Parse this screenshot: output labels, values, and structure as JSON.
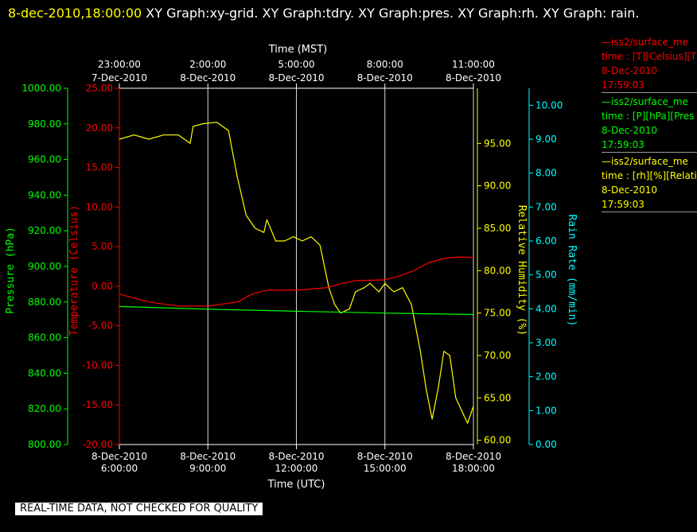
{
  "header": {
    "timestamp": "8-dec-2010,18:00:00",
    "title": "XY Graph:xy-grid.  XY Graph:tdry.  XY Graph:pres.  XY Graph:rh.  XY Graph: rain."
  },
  "legend": [
    {
      "line1": "—iss2/surface_me",
      "line2": "time : [T][Celsius][T",
      "line3": "8-Dec-2010",
      "line4": "17:59:03",
      "color": "#ff0000"
    },
    {
      "line1": "—iss2/surface_me",
      "line2": "time : [P][hPa][Pres",
      "line3": "8-Dec-2010",
      "line4": "17:59:03",
      "color": "#00ff00"
    },
    {
      "line1": "—iss2/surface_me",
      "line2": "time : [rh][%][Relati",
      "line3": "8-Dec-2010",
      "line4": "17:59:03",
      "color": "#ffff00"
    }
  ],
  "notice": "REAL-TIME DATA, NOT CHECKED FOR QUALITY",
  "chart_data": {
    "type": "line",
    "top_axis": {
      "title": "Time (MST)",
      "ticks": [
        {
          "time": "23:00:00",
          "date": "7-Dec-2010"
        },
        {
          "time": "2:00:00",
          "date": "8-Dec-2010"
        },
        {
          "time": "5:00:00",
          "date": "8-Dec-2010"
        },
        {
          "time": "8:00:00",
          "date": "8-Dec-2010"
        },
        {
          "time": "11:00:00",
          "date": "8-Dec-2010"
        }
      ]
    },
    "bottom_axis": {
      "title": "Time (UTC)",
      "range": [
        "2010-12-08 06:00:00",
        "2010-12-08 18:00:00"
      ],
      "ticks": [
        {
          "date": "8-Dec-2010",
          "time": "6:00:00"
        },
        {
          "date": "8-Dec-2010",
          "time": "9:00:00"
        },
        {
          "date": "8-Dec-2010",
          "time": "12:00:00"
        },
        {
          "date": "8-Dec-2010",
          "time": "15:00:00"
        },
        {
          "date": "8-Dec-2010",
          "time": "18:00:00"
        }
      ]
    },
    "grid": "vertical",
    "y_axes": [
      {
        "id": "pres",
        "label": "Pressure (hPa)",
        "color": "#00ff00",
        "range": [
          800,
          1000
        ],
        "ticks": [
          "800.00",
          "820.00",
          "840.00",
          "860.00",
          "880.00",
          "900.00",
          "920.00",
          "940.00",
          "960.00",
          "980.00",
          "1000.00"
        ]
      },
      {
        "id": "tdry",
        "label": "Temperature (Celsius)",
        "color": "#ff0000",
        "range": [
          -20,
          25
        ],
        "ticks": [
          "-20.00",
          "-15.00",
          "-10.00",
          "-5.00",
          "0.00",
          "5.00",
          "10.00",
          "15.00",
          "20.00",
          "25.00"
        ]
      },
      {
        "id": "rh",
        "label": "Relative Humidity (%)",
        "color": "#ffff00",
        "range": [
          59.5,
          101.5
        ],
        "ticks": [
          "60.00",
          "65.00",
          "70.00",
          "75.00",
          "80.00",
          "85.00",
          "90.00",
          "95.00"
        ]
      },
      {
        "id": "rain",
        "label": "Rain Rate (mm/min)",
        "color": "#00ffff",
        "range": [
          0,
          10.5
        ],
        "ticks": [
          "0.00",
          "1.00",
          "2.00",
          "3.00",
          "4.00",
          "5.00",
          "6.00",
          "7.00",
          "8.00",
          "9.00",
          "10.00"
        ]
      }
    ],
    "series": [
      {
        "axis": "rh",
        "color": "#ffff00",
        "x": [
          6.0,
          6.5,
          7.0,
          7.5,
          8.0,
          8.4,
          8.5,
          8.8,
          9.3,
          9.7,
          10.0,
          10.3,
          10.6,
          10.9,
          11.0,
          11.3,
          11.6,
          11.9,
          12.2,
          12.5,
          12.8,
          13.1,
          13.3,
          13.5,
          13.8,
          14.0,
          14.3,
          14.5,
          14.8,
          15.0,
          15.3,
          15.6,
          15.9,
          16.2,
          16.4,
          16.6,
          16.8,
          17.0,
          17.2,
          17.4,
          17.6,
          17.8,
          18.0
        ],
        "y": [
          95.5,
          96.0,
          95.5,
          96.0,
          96.0,
          95.0,
          97.0,
          97.3,
          97.5,
          96.5,
          91.0,
          86.5,
          85.0,
          84.5,
          86.0,
          83.5,
          83.5,
          84.0,
          83.5,
          84.0,
          83.0,
          78.0,
          76.0,
          75.0,
          75.5,
          77.5,
          78.0,
          78.5,
          77.5,
          78.5,
          77.5,
          78.0,
          76.0,
          70.5,
          66.0,
          62.5,
          66.0,
          70.5,
          70.0,
          65.0,
          63.5,
          62.0,
          64.0
        ]
      },
      {
        "axis": "tdry",
        "color": "#ff0000",
        "x": [
          6.0,
          7.0,
          8.0,
          9.0,
          10.0,
          10.5,
          11.0,
          12.0,
          13.0,
          13.5,
          14.0,
          15.0,
          15.5,
          16.0,
          16.5,
          17.0,
          17.5,
          18.0
        ],
        "y": [
          -1.0,
          -2.0,
          -2.5,
          -2.5,
          -2.0,
          -1.0,
          -0.5,
          -0.5,
          -0.2,
          0.3,
          0.7,
          0.8,
          1.3,
          2.0,
          3.0,
          3.5,
          3.7,
          3.6
        ]
      },
      {
        "axis": "pres",
        "color": "#00ff00",
        "x": [
          6.0,
          9.0,
          12.0,
          15.0,
          18.0
        ],
        "y": [
          877.5,
          876.0,
          874.8,
          873.8,
          873.0
        ]
      }
    ]
  }
}
